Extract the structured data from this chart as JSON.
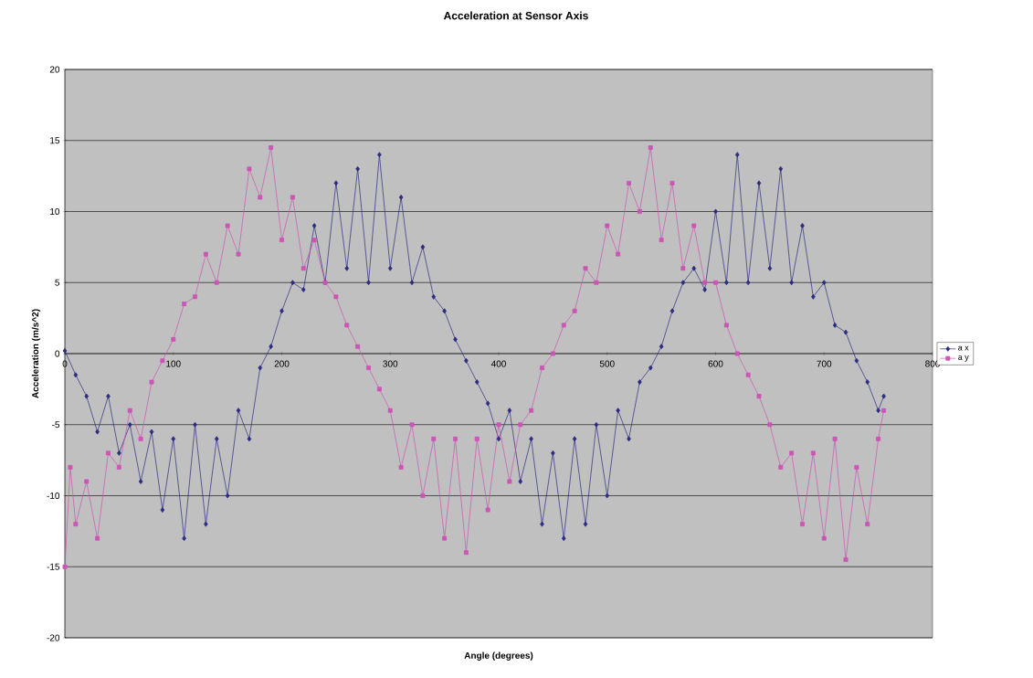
{
  "chart_data": {
    "type": "line",
    "title": "Acceleration at Sensor Axis",
    "xlabel": "Angle (degrees)",
    "ylabel": "Acceleration (m/s^2)",
    "xlim": [
      0,
      800
    ],
    "xticks": [
      0,
      100,
      200,
      300,
      400,
      500,
      600,
      700,
      800
    ],
    "ylim": [
      -20,
      20
    ],
    "yticks": [
      -20,
      -15,
      -10,
      -5,
      0,
      5,
      10,
      15,
      20
    ],
    "grid": "y",
    "legend": "right",
    "series": [
      {
        "name": "a x",
        "color": "#2b2b80",
        "marker": "diamond",
        "x": [
          0,
          10,
          20,
          30,
          40,
          50,
          60,
          70,
          80,
          90,
          100,
          110,
          120,
          130,
          140,
          150,
          160,
          170,
          180,
          190,
          200,
          210,
          220,
          230,
          240,
          250,
          260,
          270,
          280,
          290,
          300,
          310,
          320,
          330,
          340,
          350,
          360,
          370,
          380,
          390,
          400,
          410,
          420,
          430,
          440,
          450,
          460,
          470,
          480,
          490,
          500,
          510,
          520,
          530,
          540,
          550,
          560,
          570,
          580,
          590,
          600,
          610,
          620,
          630,
          640,
          650,
          660,
          670,
          680,
          690,
          700,
          710,
          720,
          730,
          740,
          750,
          755
        ],
        "values": [
          0.2,
          -1.5,
          -3,
          -5.5,
          -3,
          -7,
          -5,
          -9,
          -5.5,
          -11,
          -6,
          -13,
          -5,
          -12,
          -6,
          -10,
          -4,
          -6,
          -1,
          0.5,
          3,
          5,
          4.5,
          9,
          5,
          12,
          6,
          13,
          5,
          14,
          6,
          11,
          5,
          7.5,
          4,
          3,
          1,
          -0.5,
          -2,
          -3.5,
          -6,
          -4,
          -9,
          -6,
          -12,
          -7,
          -13,
          -6,
          -12,
          -5,
          -10,
          -4,
          -6,
          -2,
          -1,
          0.5,
          3,
          5,
          6,
          4.5,
          10,
          5,
          14,
          5,
          12,
          6,
          13,
          5,
          9,
          4,
          5,
          2,
          1.5,
          -0.5,
          -2,
          -4,
          -3
        ]
      },
      {
        "name": "a y",
        "color": "#cc55b5",
        "marker": "square",
        "x": [
          0,
          5,
          10,
          20,
          30,
          40,
          50,
          60,
          70,
          80,
          90,
          100,
          110,
          120,
          130,
          140,
          150,
          160,
          170,
          180,
          190,
          200,
          210,
          220,
          230,
          240,
          250,
          260,
          270,
          280,
          290,
          300,
          310,
          320,
          330,
          340,
          350,
          360,
          370,
          380,
          390,
          400,
          410,
          420,
          430,
          440,
          450,
          460,
          470,
          480,
          490,
          500,
          510,
          520,
          530,
          540,
          550,
          560,
          570,
          580,
          590,
          600,
          610,
          620,
          630,
          640,
          650,
          660,
          670,
          680,
          690,
          700,
          710,
          720,
          730,
          740,
          750,
          755
        ],
        "values": [
          -15,
          -8,
          -12,
          -9,
          -13,
          -7,
          -8,
          -4,
          -6,
          -2,
          -0.5,
          1,
          3.5,
          4,
          7,
          5,
          9,
          7,
          13,
          11,
          14.5,
          8,
          11,
          6,
          8,
          5,
          4,
          2,
          0.5,
          -1,
          -2.5,
          -4,
          -8,
          -5,
          -10,
          -6,
          -13,
          -6,
          -14,
          -6,
          -11,
          -5,
          -9,
          -5,
          -4,
          -1,
          0,
          2,
          3,
          6,
          5,
          9,
          7,
          12,
          10,
          14.5,
          8,
          12,
          6,
          9,
          5,
          5,
          2,
          0,
          -1.5,
          -3,
          -5,
          -8,
          -7,
          -12,
          -7,
          -13,
          -6,
          -14.5,
          -8,
          -12,
          -6,
          -4
        ]
      }
    ]
  }
}
